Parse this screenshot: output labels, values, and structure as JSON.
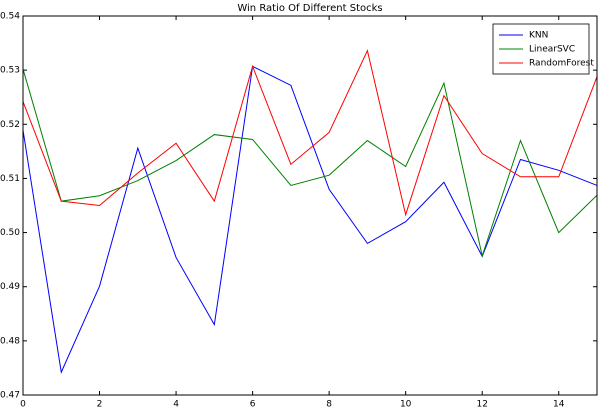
{
  "chart_data": {
    "type": "line",
    "title": "Win Ratio Of Different Stocks",
    "x": [
      0,
      1,
      2,
      3,
      4,
      5,
      6,
      7,
      8,
      9,
      10,
      11,
      12,
      13,
      14,
      15
    ],
    "series": [
      {
        "name": "KNN",
        "color": "#0000ff",
        "values": [
          0.5189,
          0.4742,
          0.4901,
          0.5156,
          0.4954,
          0.483,
          0.5307,
          0.5272,
          0.508,
          0.498,
          0.502,
          0.5093,
          0.4956,
          0.5135,
          0.5115,
          0.5087
        ]
      },
      {
        "name": "LinearSVC",
        "color": "#008000",
        "values": [
          0.5302,
          0.5058,
          0.5068,
          0.5096,
          0.5133,
          0.5181,
          0.5172,
          0.5087,
          0.5106,
          0.517,
          0.5122,
          0.5276,
          0.4957,
          0.517,
          0.5,
          0.5069
        ]
      },
      {
        "name": "RandomForest",
        "color": "#ff0000",
        "values": [
          0.5242,
          0.5058,
          0.505,
          0.511,
          0.5165,
          0.5058,
          0.5307,
          0.5126,
          0.5185,
          0.5336,
          0.5033,
          0.5253,
          0.5146,
          0.5103,
          0.5103,
          0.5288
        ]
      }
    ],
    "xlim": [
      0,
      15
    ],
    "xticks": [
      0,
      2,
      4,
      6,
      8,
      10,
      12,
      14
    ],
    "ylim": [
      0.47,
      0.54
    ],
    "yticks": [
      0.47,
      0.48,
      0.49,
      {
        "value": 0.5,
        "label": "0.50"
      },
      0.51,
      0.52,
      0.53,
      0.54
    ],
    "legend": "upper-right"
  }
}
